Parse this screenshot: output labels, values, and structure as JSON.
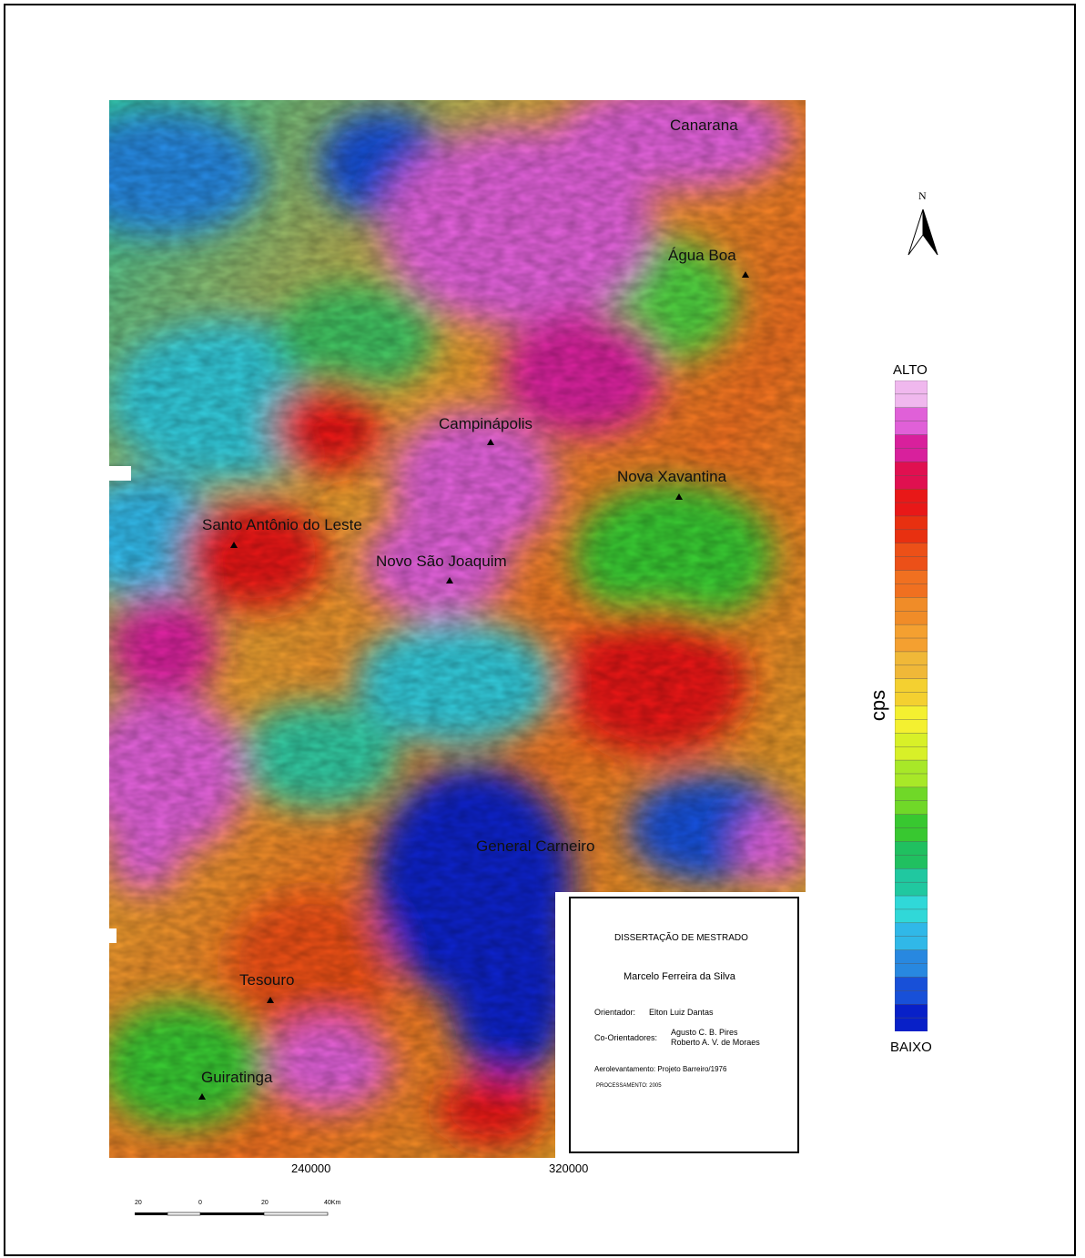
{
  "map": {
    "towns": [
      {
        "id": "canarana",
        "name": "Canarana"
      },
      {
        "id": "agua-boa",
        "name": "Água Boa"
      },
      {
        "id": "campinapolis",
        "name": "Campinápolis"
      },
      {
        "id": "nova-xavantina",
        "name": "Nova Xavantina"
      },
      {
        "id": "santo-antonio",
        "name": "Santo Antônio do Leste"
      },
      {
        "id": "novo-sao-joaquim",
        "name": "Novo São Joaquim"
      },
      {
        "id": "general-carneiro",
        "name": "General Carneiro"
      },
      {
        "id": "tesouro",
        "name": "Tesouro"
      },
      {
        "id": "guiratinga",
        "name": "Guiratinga"
      }
    ],
    "x_ticks": [
      "240000",
      "320000"
    ]
  },
  "info_box": {
    "title": "DISSERTAÇÃO DE MESTRADO",
    "author": "Marcelo Ferreira da Silva",
    "advisor_label": "Orientador:",
    "advisor": "Elton Luiz Dantas",
    "coadvisors_label": "Co-Orientadores:",
    "coadvisor_1": "Agusto C. B. Pires",
    "coadvisor_2": "Roberto A. V. de Moraes",
    "survey": "Aerolevantamento: Projeto Barreiro/1976",
    "processing": "PROCESSAMENTO: 2005"
  },
  "scale_bar": {
    "labels": [
      "20",
      "0",
      "20",
      "40Km"
    ]
  },
  "north_arrow": {
    "letter": "N"
  },
  "legend": {
    "high": "ALTO",
    "low": "BAIXO",
    "unit": "cps",
    "colors_top_to_bottom": [
      "#f0b8ee",
      "#e060d8",
      "#d8209c",
      "#e01050",
      "#e81818",
      "#e83010",
      "#ec5018",
      "#f07020",
      "#f08c28",
      "#f4a030",
      "#f0b838",
      "#f4d030",
      "#f4f030",
      "#d8f028",
      "#a8e828",
      "#70d828",
      "#38c830",
      "#20c060",
      "#20c8a0",
      "#30d8d8",
      "#30b8e8",
      "#2888e0",
      "#1850d8",
      "#0820c8"
    ],
    "colors": {
      "high": "#f0b8ee",
      "low": "#0820c8"
    }
  }
}
